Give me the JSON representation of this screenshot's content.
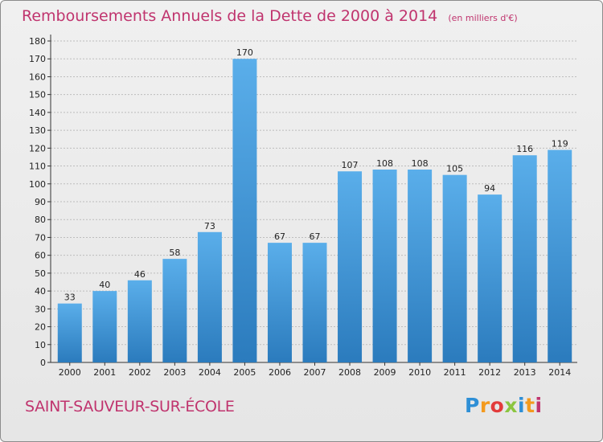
{
  "header": {
    "title": "Remboursements Annuels de la Dette de 2000 à 2014",
    "unit": "(en milliers d'€)"
  },
  "footer": {
    "commune": "SAINT-SAUVEUR-SUR-ÉCOLE"
  },
  "logo": {
    "letters": [
      "P",
      "r",
      "o",
      "x",
      "i",
      "t",
      "i"
    ],
    "colors": [
      "#2e8fd6",
      "#f39a1e",
      "#e23b3b",
      "#8bc540",
      "#2e8fd6",
      "#f39a1e",
      "#c0346e"
    ]
  },
  "colors": {
    "title": "#c0346e",
    "bar_top": "#5aaeea",
    "bar_bottom": "#2b7bbd",
    "grid": "#bdbdbd"
  },
  "chart_data": {
    "type": "bar",
    "title": "Remboursements Annuels de la Dette de 2000 à 2014",
    "subtitle": "(en milliers d'€)",
    "xlabel": "",
    "ylabel": "",
    "categories": [
      "2000",
      "2001",
      "2002",
      "2003",
      "2004",
      "2005",
      "2006",
      "2007",
      "2008",
      "2009",
      "2010",
      "2011",
      "2012",
      "2013",
      "2014"
    ],
    "values": [
      33,
      40,
      46,
      58,
      73,
      170,
      67,
      67,
      107,
      108,
      108,
      105,
      94,
      116,
      119
    ],
    "ylim": [
      0,
      180
    ],
    "yticks": [
      0,
      10,
      20,
      30,
      40,
      50,
      60,
      70,
      80,
      90,
      100,
      110,
      120,
      130,
      140,
      150,
      160,
      170,
      180
    ],
    "grid": true,
    "data_labels": true
  }
}
